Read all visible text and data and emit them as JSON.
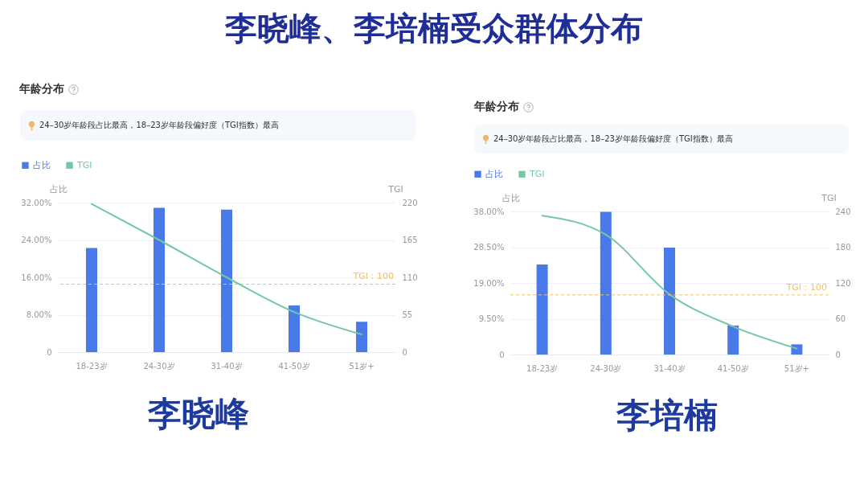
{
  "chart_data": [
    {
      "type": "other",
      "title": "李晓峰、李培楠受众群体分布"
    },
    {
      "type": "bar",
      "title": "年龄分布",
      "subtitle": "24–30岁年龄段占比最高，18–23岁年龄段偏好度（TGI指数）最高",
      "categories": [
        "18-23岁",
        "24-30岁",
        "31-40岁",
        "41-50岁",
        "51岁+"
      ],
      "series": [
        {
          "name": "占比",
          "type": "bar",
          "color": "#4a7ae9",
          "values": [
            22.3,
            30.9,
            30.5,
            10.0,
            6.5
          ]
        },
        {
          "name": "TGI",
          "type": "line",
          "axis": "y2",
          "color": "#72c9a2",
          "values": [
            218,
            165,
            110,
            59,
            26
          ]
        }
      ],
      "ylabel": "占比",
      "y2label": "TGI",
      "ylim": [
        0,
        32
      ],
      "yticks": [
        0,
        {
          "value": 8,
          "label": "8.00%"
        },
        {
          "value": 16,
          "label": "16.00%"
        },
        {
          "value": 24,
          "label": "24.00%"
        },
        {
          "value": 32,
          "label": "32.00%"
        }
      ],
      "y2lim": [
        0,
        220
      ],
      "y2ticks": [
        0,
        55,
        110,
        165,
        220
      ],
      "ref_lines": [
        {
          "axis": "y2",
          "value": 100,
          "label": "TGI：100",
          "color": "#f2c162",
          "line_style": "dashed"
        }
      ],
      "grid": "y",
      "legend": "top left",
      "annotations": [
        "李晓峰"
      ]
    },
    {
      "type": "bar",
      "title": "年龄分布",
      "subtitle": "24–30岁年龄段占比最高，18–23岁年龄段偏好度（TGI指数）最高",
      "categories": [
        "18-23岁",
        "24-30岁",
        "31-40岁",
        "41-50岁",
        "51岁+"
      ],
      "series": [
        {
          "name": "占比",
          "type": "bar",
          "color": "#4a7ae9",
          "values": [
            23.9,
            37.9,
            28.4,
            7.7,
            2.7
          ]
        },
        {
          "name": "TGI",
          "type": "line",
          "axis": "y2",
          "color": "#72c9a2",
          "values": [
            233,
            201,
            101,
            47,
            10
          ]
        }
      ],
      "ylabel": "占比",
      "y2label": "TGI",
      "ylim": [
        0,
        38
      ],
      "yticks": [
        0,
        {
          "value": 9.5,
          "label": "9.50%"
        },
        {
          "value": 19,
          "label": "19.00%"
        },
        {
          "value": 28.5,
          "label": "28.50%"
        },
        {
          "value": 38,
          "label": "38.00%"
        }
      ],
      "y2lim": [
        0,
        240
      ],
      "y2ticks": [
        0,
        60,
        120,
        180,
        240
      ],
      "ref_lines": [
        {
          "axis": "y2",
          "value": 100,
          "label": "TGI：100",
          "color": "#f2c162",
          "line_style": "dashed"
        }
      ],
      "grid": "y",
      "legend": "top left",
      "annotations": [
        "李培楠"
      ]
    }
  ]
}
